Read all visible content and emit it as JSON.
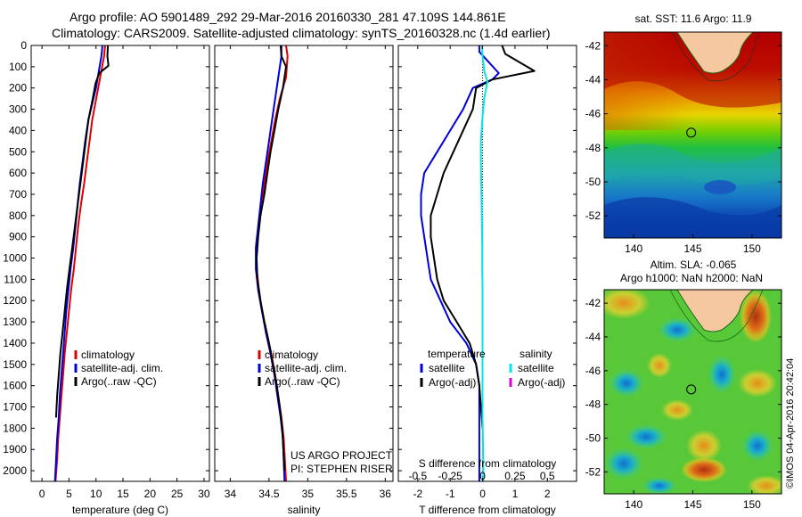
{
  "header": {
    "line1": "Argo profile: AO 5901489_292 29-Mar-2016 20160330_281 47.109S 144.861E",
    "line2": "Climatology: CARS2009. Satellite-adjusted climatology: synTS_20160328.nc (1.4d earlier)"
  },
  "watermark": "©IMOS 04-Apr-2016 20:42:04",
  "colors": {
    "climatology": "#dd0000",
    "satellite": "#0000dd",
    "argo": "#000000",
    "sal_satellite": "#00e5e5",
    "sal_argo": "#dd00dd"
  },
  "chart_data": [
    {
      "id": "temperature",
      "type": "line",
      "xlabel": "temperature (deg C)",
      "ylabel": "",
      "xlim": [
        -2,
        31
      ],
      "ylim": [
        2050,
        0
      ],
      "xticks": [
        0,
        5,
        10,
        15,
        20,
        25,
        30
      ],
      "yticks": [
        0,
        100,
        200,
        300,
        400,
        500,
        600,
        700,
        800,
        900,
        1000,
        1100,
        1200,
        1300,
        1400,
        1500,
        1600,
        1700,
        1800,
        1900,
        2000
      ],
      "legend": [
        "climatology",
        "satellite-adj. clim.",
        "Argo(..raw -QC)"
      ],
      "series": [
        {
          "name": "climatology",
          "x": [
            11.7,
            11.5,
            10.4,
            9.3,
            8.8,
            8.3,
            7.8,
            7.2,
            6.7,
            6.3,
            5.9,
            5.4,
            5.0,
            4.6,
            4.2,
            3.9,
            3.6,
            3.3,
            3.0,
            2.8,
            2.5
          ],
          "y": [
            0,
            50,
            200,
            350,
            450,
            550,
            650,
            750,
            850,
            950,
            1050,
            1150,
            1250,
            1350,
            1450,
            1550,
            1650,
            1750,
            1850,
            1950,
            2050
          ]
        },
        {
          "name": "satellite-adj. clim.",
          "x": [
            11.2,
            11.0,
            10.0,
            8.6,
            8.0,
            7.5,
            7.0,
            6.6,
            6.2,
            5.8,
            5.3,
            4.9,
            4.5,
            4.2,
            3.9,
            3.6,
            3.3,
            3.1,
            2.8,
            2.6,
            2.4
          ],
          "y": [
            0,
            50,
            200,
            350,
            450,
            550,
            650,
            750,
            850,
            950,
            1050,
            1150,
            1250,
            1350,
            1450,
            1550,
            1650,
            1750,
            1850,
            1950,
            2050
          ]
        },
        {
          "name": "Argo(..raw -QC)",
          "x": [
            12.2,
            12.1,
            12.3,
            10.6,
            9.9,
            9.4,
            8.6,
            8.1,
            7.6,
            7.1,
            6.6,
            6.1,
            5.6,
            5.1,
            4.6,
            4.2,
            3.8,
            3.4,
            3.1,
            2.8,
            2.6
          ],
          "y": [
            0,
            50,
            95,
            130,
            180,
            250,
            350,
            450,
            550,
            650,
            750,
            850,
            950,
            1050,
            1150,
            1250,
            1350,
            1450,
            1550,
            1650,
            1750
          ]
        }
      ]
    },
    {
      "id": "salinity",
      "type": "line",
      "xlabel": "salinity",
      "ylabel": "",
      "xlim": [
        33.8,
        36.1
      ],
      "ylim": [
        2050,
        0
      ],
      "xticks": [
        34,
        34.5,
        35,
        35.5,
        36
      ],
      "legend": [
        "climatology",
        "satellite-adj. clim.",
        "Argo(..raw -QC)"
      ],
      "annotations": [
        "US ARGO PROJECT",
        "PI: STEPHEN RISER"
      ],
      "series": [
        {
          "name": "climatology",
          "x": [
            34.72,
            34.74,
            34.72,
            34.64,
            34.58,
            34.53,
            34.48,
            34.44,
            34.41,
            34.37,
            34.34,
            34.34,
            34.37,
            34.41,
            34.47,
            34.53,
            34.58,
            34.62,
            34.66,
            34.69,
            34.72
          ],
          "y": [
            0,
            50,
            150,
            250,
            350,
            450,
            550,
            650,
            750,
            850,
            950,
            1050,
            1150,
            1250,
            1350,
            1450,
            1550,
            1650,
            1750,
            1850,
            2050
          ]
        },
        {
          "name": "satellite-adj. clim.",
          "x": [
            34.66,
            34.66,
            34.62,
            34.58,
            34.54,
            34.5,
            34.46,
            34.42,
            34.39,
            34.36,
            34.33,
            34.33,
            34.36,
            34.41,
            34.46,
            34.52,
            34.57,
            34.61,
            34.65,
            34.68,
            34.7
          ],
          "y": [
            0,
            50,
            150,
            250,
            350,
            450,
            550,
            650,
            750,
            850,
            950,
            1050,
            1150,
            1250,
            1350,
            1450,
            1550,
            1650,
            1750,
            1850,
            2050
          ]
        },
        {
          "name": "Argo(..raw -QC)",
          "x": [
            34.65,
            34.66,
            34.72,
            34.68,
            34.62,
            34.57,
            34.52,
            34.48,
            34.44,
            34.39,
            34.36,
            34.34,
            34.35,
            34.39,
            34.44,
            34.5,
            34.55,
            34.6,
            34.64,
            34.67,
            34.7
          ],
          "y": [
            0,
            50,
            100,
            200,
            300,
            400,
            500,
            600,
            700,
            800,
            900,
            1000,
            1100,
            1200,
            1300,
            1400,
            1500,
            1600,
            1700,
            1800,
            2000
          ]
        }
      ]
    },
    {
      "id": "difference",
      "type": "line",
      "xlabel": "T difference from climatology",
      "xlabel2": "S difference from climatology",
      "ylabel": "",
      "xlim": [
        -2.6,
        2.9
      ],
      "ylim": [
        2050,
        0
      ],
      "xticks": [
        -2,
        -1,
        0,
        1,
        2
      ],
      "xticks2": [
        -0.5,
        -0.25,
        0,
        0.25,
        0.5
      ],
      "legend": {
        "temperature_title": "temperature",
        "salinity_title": "salinity",
        "items": [
          "satellite",
          "Argo(-adj)",
          "satellite",
          "Argo(-adj)"
        ]
      },
      "series": [
        {
          "name": "T satellite",
          "x": [
            -0.1,
            -0.1,
            0.2,
            0.5,
            0.3,
            -0.3,
            -0.6,
            -1.0,
            -1.4,
            -1.8,
            -1.9,
            -1.9,
            -1.8,
            -1.7,
            -1.6,
            -1.3,
            -1.0,
            -0.5,
            -0.2,
            -0.1,
            -0.1,
            -0.1,
            -0.1
          ],
          "y": [
            0,
            30,
            80,
            130,
            160,
            200,
            300,
            400,
            500,
            600,
            700,
            800,
            900,
            1000,
            1100,
            1200,
            1300,
            1400,
            1500,
            1600,
            1800,
            1900,
            2050
          ]
        },
        {
          "name": "T Argo(-adj)",
          "x": [
            0.6,
            0.7,
            1.6,
            0.3,
            -0.2,
            -0.3,
            -0.6,
            -0.9,
            -1.2,
            -1.4,
            -1.6,
            -1.6,
            -1.5,
            -1.4,
            -1.2,
            -0.8,
            -0.4,
            -0.2,
            -0.1,
            0.0
          ],
          "y": [
            0,
            40,
            120,
            160,
            200,
            300,
            400,
            500,
            600,
            700,
            800,
            900,
            1000,
            1100,
            1200,
            1300,
            1400,
            1500,
            1600,
            1800
          ]
        },
        {
          "name": "S satellite",
          "x": [
            -0.02,
            0.0,
            0.05,
            0.15,
            0.05,
            -0.01,
            -0.05,
            -0.05,
            -0.04,
            -0.03,
            -0.02,
            -0.01,
            -0.01,
            0.0,
            0.0,
            0.0,
            0.0,
            0.0,
            0.0,
            0.02,
            0.02
          ],
          "y": [
            0,
            50,
            120,
            170,
            250,
            350,
            450,
            550,
            650,
            750,
            850,
            950,
            1050,
            1150,
            1250,
            1350,
            1450,
            1550,
            1750,
            1950,
            2050
          ]
        }
      ]
    },
    {
      "id": "sst_map",
      "type": "heatmap",
      "title": "sat. SST: 11.6  Argo: 11.9",
      "xticks": [
        140,
        145,
        150
      ],
      "yticks": [
        -42,
        -44,
        -46,
        -48,
        -50,
        -52
      ],
      "xlim": [
        137.5,
        152.5
      ],
      "ylim": [
        -53.3,
        -41.2
      ],
      "marker": {
        "lon": 144.861,
        "lat": -47.109
      }
    },
    {
      "id": "sla_map",
      "type": "heatmap",
      "title": "Altim. SLA: -0.065",
      "subtitle": "Argo h1000: NaN h2000: NaN",
      "xticks": [
        140,
        145,
        150
      ],
      "yticks": [
        -42,
        -44,
        -46,
        -48,
        -50,
        -52
      ],
      "xlim": [
        137.5,
        152.5
      ],
      "ylim": [
        -53.3,
        -41.2
      ],
      "marker": {
        "lon": 144.861,
        "lat": -47.109
      }
    }
  ]
}
